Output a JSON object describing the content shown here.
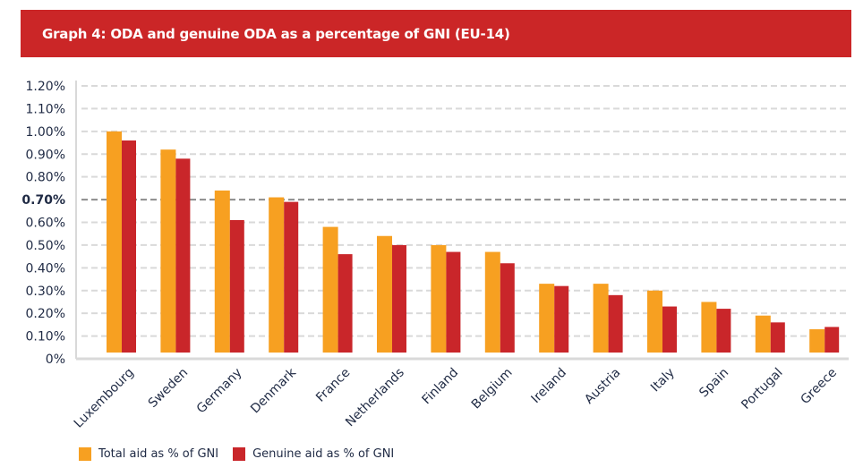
{
  "header": {
    "title": "Graph 4: ODA and genuine ODA as a percentage of GNI (EU-14)"
  },
  "colors": {
    "header_bg": "#CB2627",
    "total": "#F7A021",
    "genuine": "#C9262A",
    "grid": "#D9D9D9",
    "reference_line": "#8C8C8C",
    "text": "#1F2A44"
  },
  "chart_data": {
    "type": "bar",
    "title": "Graph 4: ODA and genuine ODA as a percentage of GNI (EU-14)",
    "xlabel": "",
    "ylabel": "",
    "ylim": [
      0,
      1.2
    ],
    "y_unit": "%",
    "y_ticks": [
      "0%",
      "0.10%",
      "0.20%",
      "0.30%",
      "0.40%",
      "0.50%",
      "0.60%",
      "0.70%",
      "0.80%",
      "0.90%",
      "1.00%",
      "1.10%",
      "1.20%"
    ],
    "y_tick_values": [
      0,
      0.1,
      0.2,
      0.3,
      0.4,
      0.5,
      0.6,
      0.7,
      0.8,
      0.9,
      1.0,
      1.1,
      1.2
    ],
    "grid": true,
    "reference_line": {
      "value": 0.7,
      "label": "0.70%",
      "style": "dashed-dark"
    },
    "categories": [
      "Luxembourg",
      "Sweden",
      "Germany",
      "Denmark",
      "France",
      "Netherlands",
      "Finland",
      "Belgium",
      "Ireland",
      "Austria",
      "Italy",
      "Spain",
      "Portugal",
      "Greece"
    ],
    "series": [
      {
        "name": "Total aid as % of GNI",
        "color": "#F7A021",
        "values": [
          1.0,
          0.92,
          0.74,
          0.71,
          0.58,
          0.54,
          0.5,
          0.47,
          0.33,
          0.33,
          0.3,
          0.25,
          0.19,
          0.13
        ]
      },
      {
        "name": "Genuine aid as % of GNI",
        "color": "#C9262A",
        "values": [
          0.96,
          0.88,
          0.61,
          0.69,
          0.46,
          0.5,
          0.47,
          0.42,
          0.32,
          0.28,
          0.23,
          0.22,
          0.16,
          0.14
        ]
      }
    ],
    "legend_position": "bottom-left",
    "x_label_rotation": "-45deg"
  }
}
